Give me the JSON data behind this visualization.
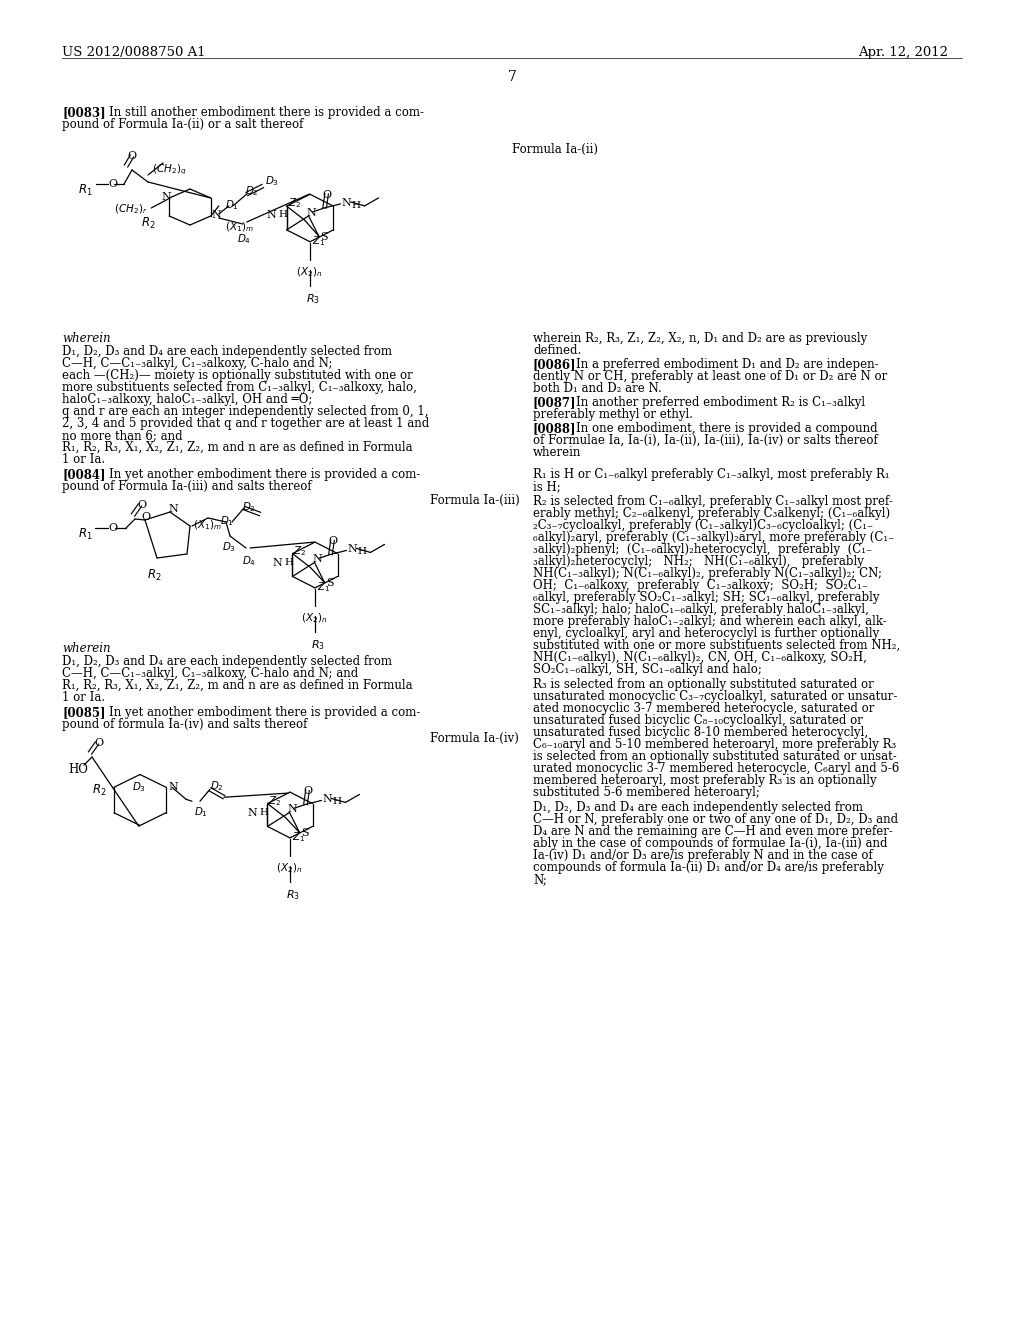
{
  "background_color": "#ffffff",
  "figsize": [
    10.24,
    13.2
  ],
  "dpi": 100,
  "header_left": "US 2012/0088750 A1",
  "header_right": "Apr. 12, 2012",
  "page_number": "7"
}
